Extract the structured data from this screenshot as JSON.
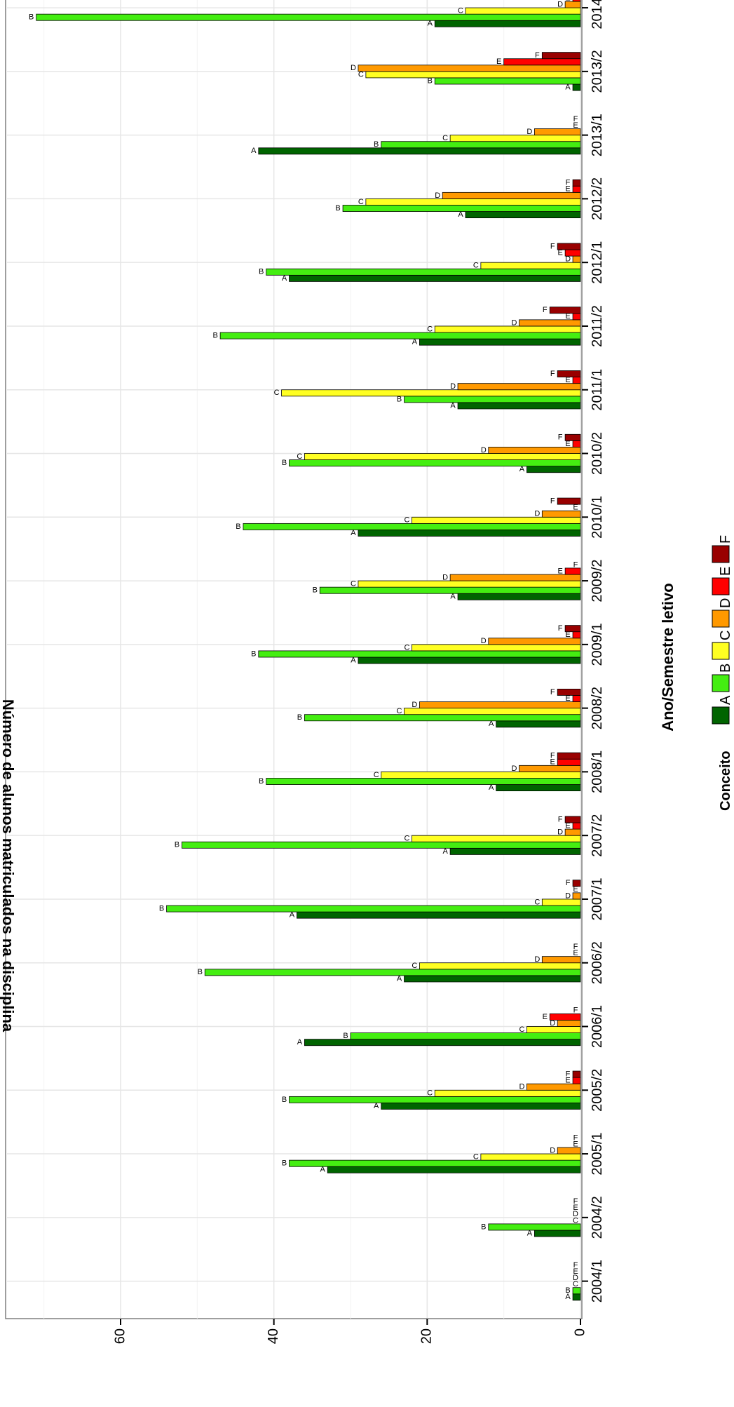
{
  "chart_data": {
    "type": "bar",
    "orientation": "horizontal",
    "xlabel": "Ano/Semestre letivo",
    "ylabel": "Número de alunos matriculados na disciplina",
    "ylim": [
      0,
      75
    ],
    "yticks": [
      0,
      20,
      40,
      60
    ],
    "grid": true,
    "legend": {
      "title": "Conceito",
      "placement": "right",
      "entries": [
        "A",
        "B",
        "C",
        "D",
        "E",
        "F"
      ]
    },
    "colors": {
      "A": "#006400",
      "B": "#44ee11",
      "C": "#ffff22",
      "D": "#ff9900",
      "E": "#ff0000",
      "F": "#990000"
    },
    "categories": [
      "2004/1",
      "2004/2",
      "2005/1",
      "2005/2",
      "2006/1",
      "2006/2",
      "2007/1",
      "2007/2",
      "2008/1",
      "2008/2",
      "2009/1",
      "2009/2",
      "2010/1",
      "2010/2",
      "2011/1",
      "2011/2",
      "2012/1",
      "2012/2",
      "2013/1",
      "2013/2",
      "2014/1"
    ],
    "series": [
      {
        "name": "A",
        "values": [
          1,
          6,
          33,
          26,
          36,
          23,
          37,
          17,
          11,
          11,
          29,
          16,
          29,
          7,
          16,
          21,
          38,
          15,
          42,
          1,
          19
        ]
      },
      {
        "name": "B",
        "values": [
          1,
          12,
          38,
          38,
          30,
          49,
          54,
          52,
          41,
          36,
          42,
          34,
          44,
          38,
          23,
          47,
          41,
          31,
          26,
          19,
          71
        ]
      },
      {
        "name": "C",
        "values": [
          0,
          0,
          13,
          19,
          7,
          21,
          5,
          22,
          26,
          23,
          22,
          29,
          22,
          36,
          39,
          19,
          13,
          28,
          17,
          28,
          15
        ]
      },
      {
        "name": "D",
        "values": [
          0,
          0,
          3,
          7,
          3,
          5,
          1,
          2,
          8,
          21,
          12,
          17,
          5,
          12,
          16,
          8,
          1,
          18,
          6,
          29,
          2
        ]
      },
      {
        "name": "E",
        "values": [
          0,
          0,
          0,
          1,
          4,
          0,
          0,
          1,
          3,
          1,
          1,
          2,
          0,
          1,
          1,
          1,
          2,
          1,
          0,
          10,
          1
        ]
      },
      {
        "name": "F",
        "values": [
          0,
          0,
          0,
          1,
          0,
          0,
          1,
          2,
          3,
          3,
          2,
          0,
          3,
          2,
          3,
          4,
          3,
          1,
          0,
          5,
          2
        ]
      }
    ]
  }
}
